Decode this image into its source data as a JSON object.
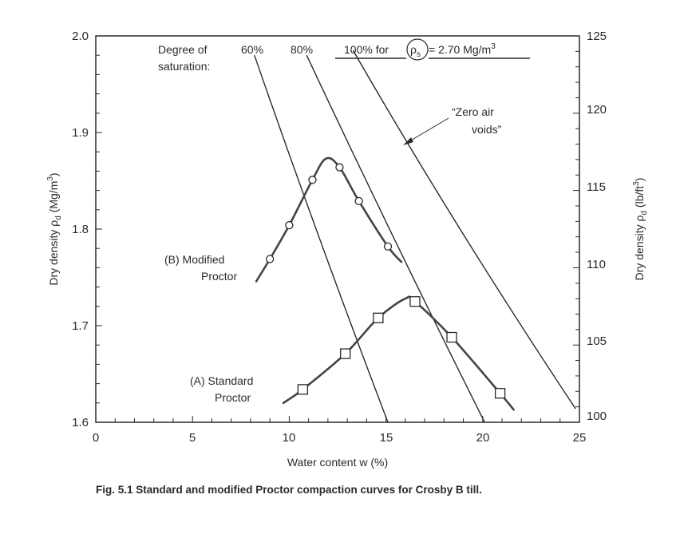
{
  "chart_data": {
    "type": "line",
    "xlabel": "Water content w (%)",
    "ylabel_left": "Dry density ρ_d (Mg/m^3)",
    "ylabel_right": "Dry density ρ_d (lb/ft^3)",
    "xlim": [
      0,
      25
    ],
    "ylim": [
      1.6,
      2.0
    ],
    "ylim_right": [
      100,
      125
    ],
    "x_ticks": [
      "0",
      "5",
      "10",
      "15",
      "20",
      "25"
    ],
    "y_ticks_left": [
      "1.6",
      "1.7",
      "1.8",
      "1.9",
      "2.0"
    ],
    "y_ticks_right": [
      "100",
      "105",
      "110",
      "115",
      "120",
      "125"
    ],
    "grid": false,
    "series": [
      {
        "name": "(B) Modified Proctor",
        "label_lines": [
          "(B) Modified",
          "Proctor"
        ],
        "marker": "circle",
        "points": {
          "x": [
            9.0,
            10.0,
            11.2,
            12.6,
            13.6,
            15.1
          ],
          "y": [
            1.769,
            1.804,
            1.851,
            1.864,
            1.829,
            1.782
          ]
        },
        "curve": {
          "x": [
            8.3,
            9.0,
            10.0,
            11.2,
            11.9,
            12.6,
            13.6,
            15.1,
            15.8
          ],
          "y": [
            1.746,
            1.769,
            1.804,
            1.851,
            1.873,
            1.864,
            1.829,
            1.782,
            1.766
          ]
        }
      },
      {
        "name": "(A) Standard Proctor",
        "label_lines": [
          "(A) Standard",
          "Proctor"
        ],
        "marker": "square",
        "points": {
          "x": [
            10.7,
            12.9,
            14.6,
            16.5,
            18.4,
            20.9
          ],
          "y": [
            1.634,
            1.671,
            1.708,
            1.725,
            1.688,
            1.63
          ]
        },
        "curve": {
          "x": [
            9.7,
            10.7,
            12.9,
            14.6,
            16.0,
            16.5,
            18.4,
            20.9,
            21.6
          ],
          "y": [
            1.62,
            1.634,
            1.671,
            1.708,
            1.728,
            1.725,
            1.688,
            1.63,
            1.613
          ]
        }
      }
    ],
    "saturation_lines": [
      {
        "label": "60%",
        "x": [
          8.2,
          15.1
        ],
        "y": [
          1.98,
          1.6
        ]
      },
      {
        "label": "80%",
        "x": [
          10.9,
          20.1
        ],
        "y": [
          1.98,
          1.6
        ]
      },
      {
        "label": "100%",
        "x": [
          13.3,
          24.8
        ],
        "y": [
          1.985,
          1.614
        ]
      }
    ],
    "annotations": {
      "degree_line1": "Degree of",
      "degree_line2": "saturation:",
      "sat_60": "60%",
      "sat_80": "80%",
      "sat_100_prefix": "100% for",
      "sat_100_rho": "ρ",
      "sat_100_sub": "s",
      "sat_100_suffix": "= 2.70 Mg/m",
      "sat_100_sup": "3",
      "zav_line1": "“Zero air",
      "zav_line2": "voids”",
      "ylabel_left_main": "Dry density ρ",
      "ylabel_left_sub": "d",
      "ylabel_left_unit": " (Mg/m",
      "ylabel_left_sup": "3",
      "ylabel_left_close": ")",
      "ylabel_right_main": "Dry density ρ",
      "ylabel_right_sub": "d",
      "ylabel_right_unit": " (lb/ft",
      "ylabel_right_sup": "3",
      "ylabel_right_close": ")"
    }
  },
  "caption": "Fig. 5.1 Standard and modified Proctor compaction curves for Crosby B till."
}
